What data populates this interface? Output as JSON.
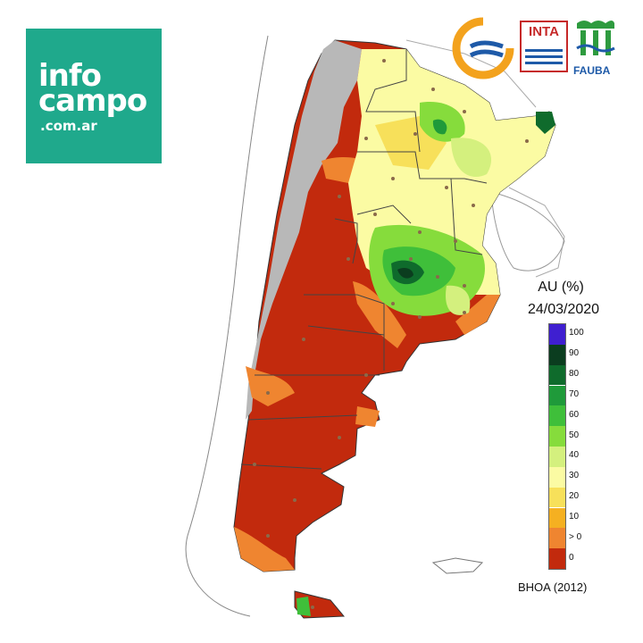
{
  "brand": {
    "line1": "info",
    "line2": "campo",
    "line3": ".com.ar"
  },
  "logos": {
    "inta_label": "INTA",
    "fauba_label": "FAUBA",
    "colors": {
      "blue": "#1e5aa8",
      "orange": "#f3a21d",
      "green": "#2e9b3f",
      "red": "#c62828"
    }
  },
  "legend": {
    "title": "AU (%)",
    "date": "24/03/2020",
    "source": "BHOA (2012)",
    "ticks": [
      "100",
      "90",
      "80",
      "70",
      "60",
      "50",
      "40",
      "30",
      "20",
      "10",
      "> 0",
      "0"
    ],
    "bands": [
      {
        "color": "#3f1fd0"
      },
      {
        "color": "#0b3d1f"
      },
      {
        "color": "#0f6b2c"
      },
      {
        "color": "#1f9a3a"
      },
      {
        "color": "#3fbf3a"
      },
      {
        "color": "#86dc3c"
      },
      {
        "color": "#d4f07e"
      },
      {
        "color": "#fbfba3"
      },
      {
        "color": "#f7e05a"
      },
      {
        "color": "#f5b021"
      },
      {
        "color": "#ef8530"
      },
      {
        "color": "#c22a0d"
      }
    ]
  }
}
